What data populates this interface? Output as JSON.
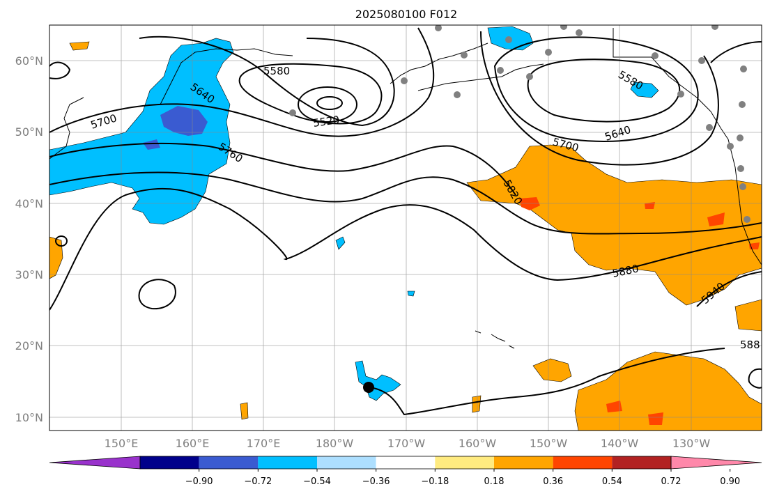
{
  "title": "2025080100 F012",
  "axes": {
    "lat_ticks": [
      "60°N",
      "50°N",
      "40°N",
      "30°N",
      "20°N",
      "10°N"
    ],
    "lon_ticks": [
      "150°E",
      "160°E",
      "170°E",
      "180°W",
      "170°W",
      "160°W",
      "150°W",
      "140°W",
      "130°W"
    ]
  },
  "contour_labels": [
    "5580",
    "5520",
    "5640",
    "5700",
    "5760",
    "5580",
    "5640",
    "5700",
    "5820",
    "5880",
    "5940",
    "588"
  ],
  "colorbar": {
    "ticks": [
      "−0.90",
      "−0.72",
      "−0.54",
      "−0.36",
      "−0.18",
      "0.18",
      "0.36",
      "0.54",
      "0.72",
      "0.90"
    ],
    "colors": [
      "#9932CC",
      "#00008B",
      "#3A5BD1",
      "#00BFFF",
      "#ADDFFF",
      "#FFFFFF",
      "#FFEB80",
      "#FFA500",
      "#FF4500",
      "#B22222",
      "#FF88AA"
    ]
  },
  "palette": {
    "negative": "#00BFFF",
    "strong_negative": "#3A5BD1",
    "positive": "#FFA500",
    "strong_positive": "#FF4500",
    "station_marker": "#808080",
    "storm_marker": "#000000"
  }
}
